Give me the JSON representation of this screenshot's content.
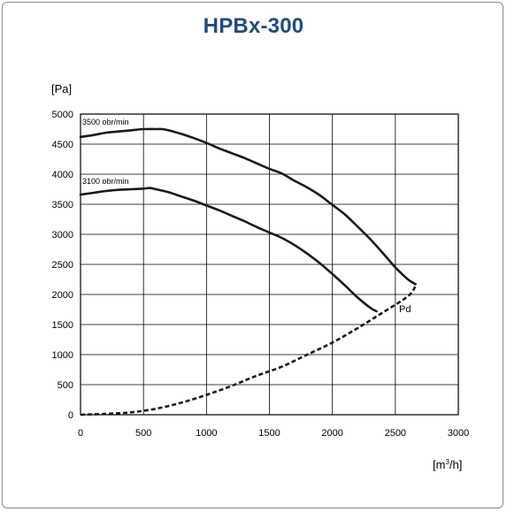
{
  "chart_data": {
    "type": "line",
    "title": "HPBx-300",
    "xlabel": "[m",
    "xlabel_sup": "3",
    "xlabel_end": "/h]",
    "ylabel": "[Pa]",
    "xlim": [
      0,
      3000
    ],
    "ylim": [
      0,
      5000
    ],
    "x_ticks": [
      0,
      500,
      1000,
      1500,
      2000,
      2500,
      3000
    ],
    "y_ticks": [
      0,
      500,
      1000,
      1500,
      2000,
      2500,
      3000,
      3500,
      4000,
      4500,
      5000
    ],
    "grid": true,
    "series": [
      {
        "name": "3500 obr/min",
        "style": "solid",
        "x": [
          0,
          100,
          200,
          300,
          400,
          500,
          600,
          650,
          700,
          800,
          900,
          1000,
          1100,
          1200,
          1300,
          1400,
          1500,
          1600,
          1700,
          1800,
          1900,
          2000,
          2100,
          2200,
          2300,
          2400,
          2500,
          2600,
          2660
        ],
        "y": [
          4620,
          4650,
          4690,
          4710,
          4730,
          4750,
          4750,
          4750,
          4730,
          4670,
          4600,
          4520,
          4430,
          4350,
          4270,
          4180,
          4090,
          4010,
          3890,
          3780,
          3650,
          3490,
          3330,
          3130,
          2920,
          2690,
          2450,
          2250,
          2170
        ]
      },
      {
        "name": "3100 obr/min",
        "style": "solid",
        "x": [
          0,
          100,
          200,
          300,
          400,
          500,
          550,
          600,
          700,
          800,
          900,
          1000,
          1100,
          1200,
          1300,
          1400,
          1500,
          1600,
          1700,
          1800,
          1900,
          2000,
          2100,
          2200,
          2300,
          2350
        ],
        "y": [
          3660,
          3690,
          3720,
          3740,
          3750,
          3760,
          3770,
          3750,
          3700,
          3630,
          3560,
          3480,
          3400,
          3310,
          3220,
          3120,
          3030,
          2940,
          2820,
          2680,
          2520,
          2340,
          2150,
          1950,
          1780,
          1720
        ]
      },
      {
        "name": "Pd",
        "style": "dashed",
        "x": [
          0,
          200,
          400,
          600,
          800,
          1000,
          1200,
          1400,
          1600,
          1800,
          2000,
          2200,
          2400,
          2600,
          2660
        ],
        "y": [
          0,
          15,
          40,
          100,
          200,
          330,
          480,
          650,
          800,
          1000,
          1200,
          1440,
          1700,
          1970,
          2140
        ]
      }
    ]
  }
}
